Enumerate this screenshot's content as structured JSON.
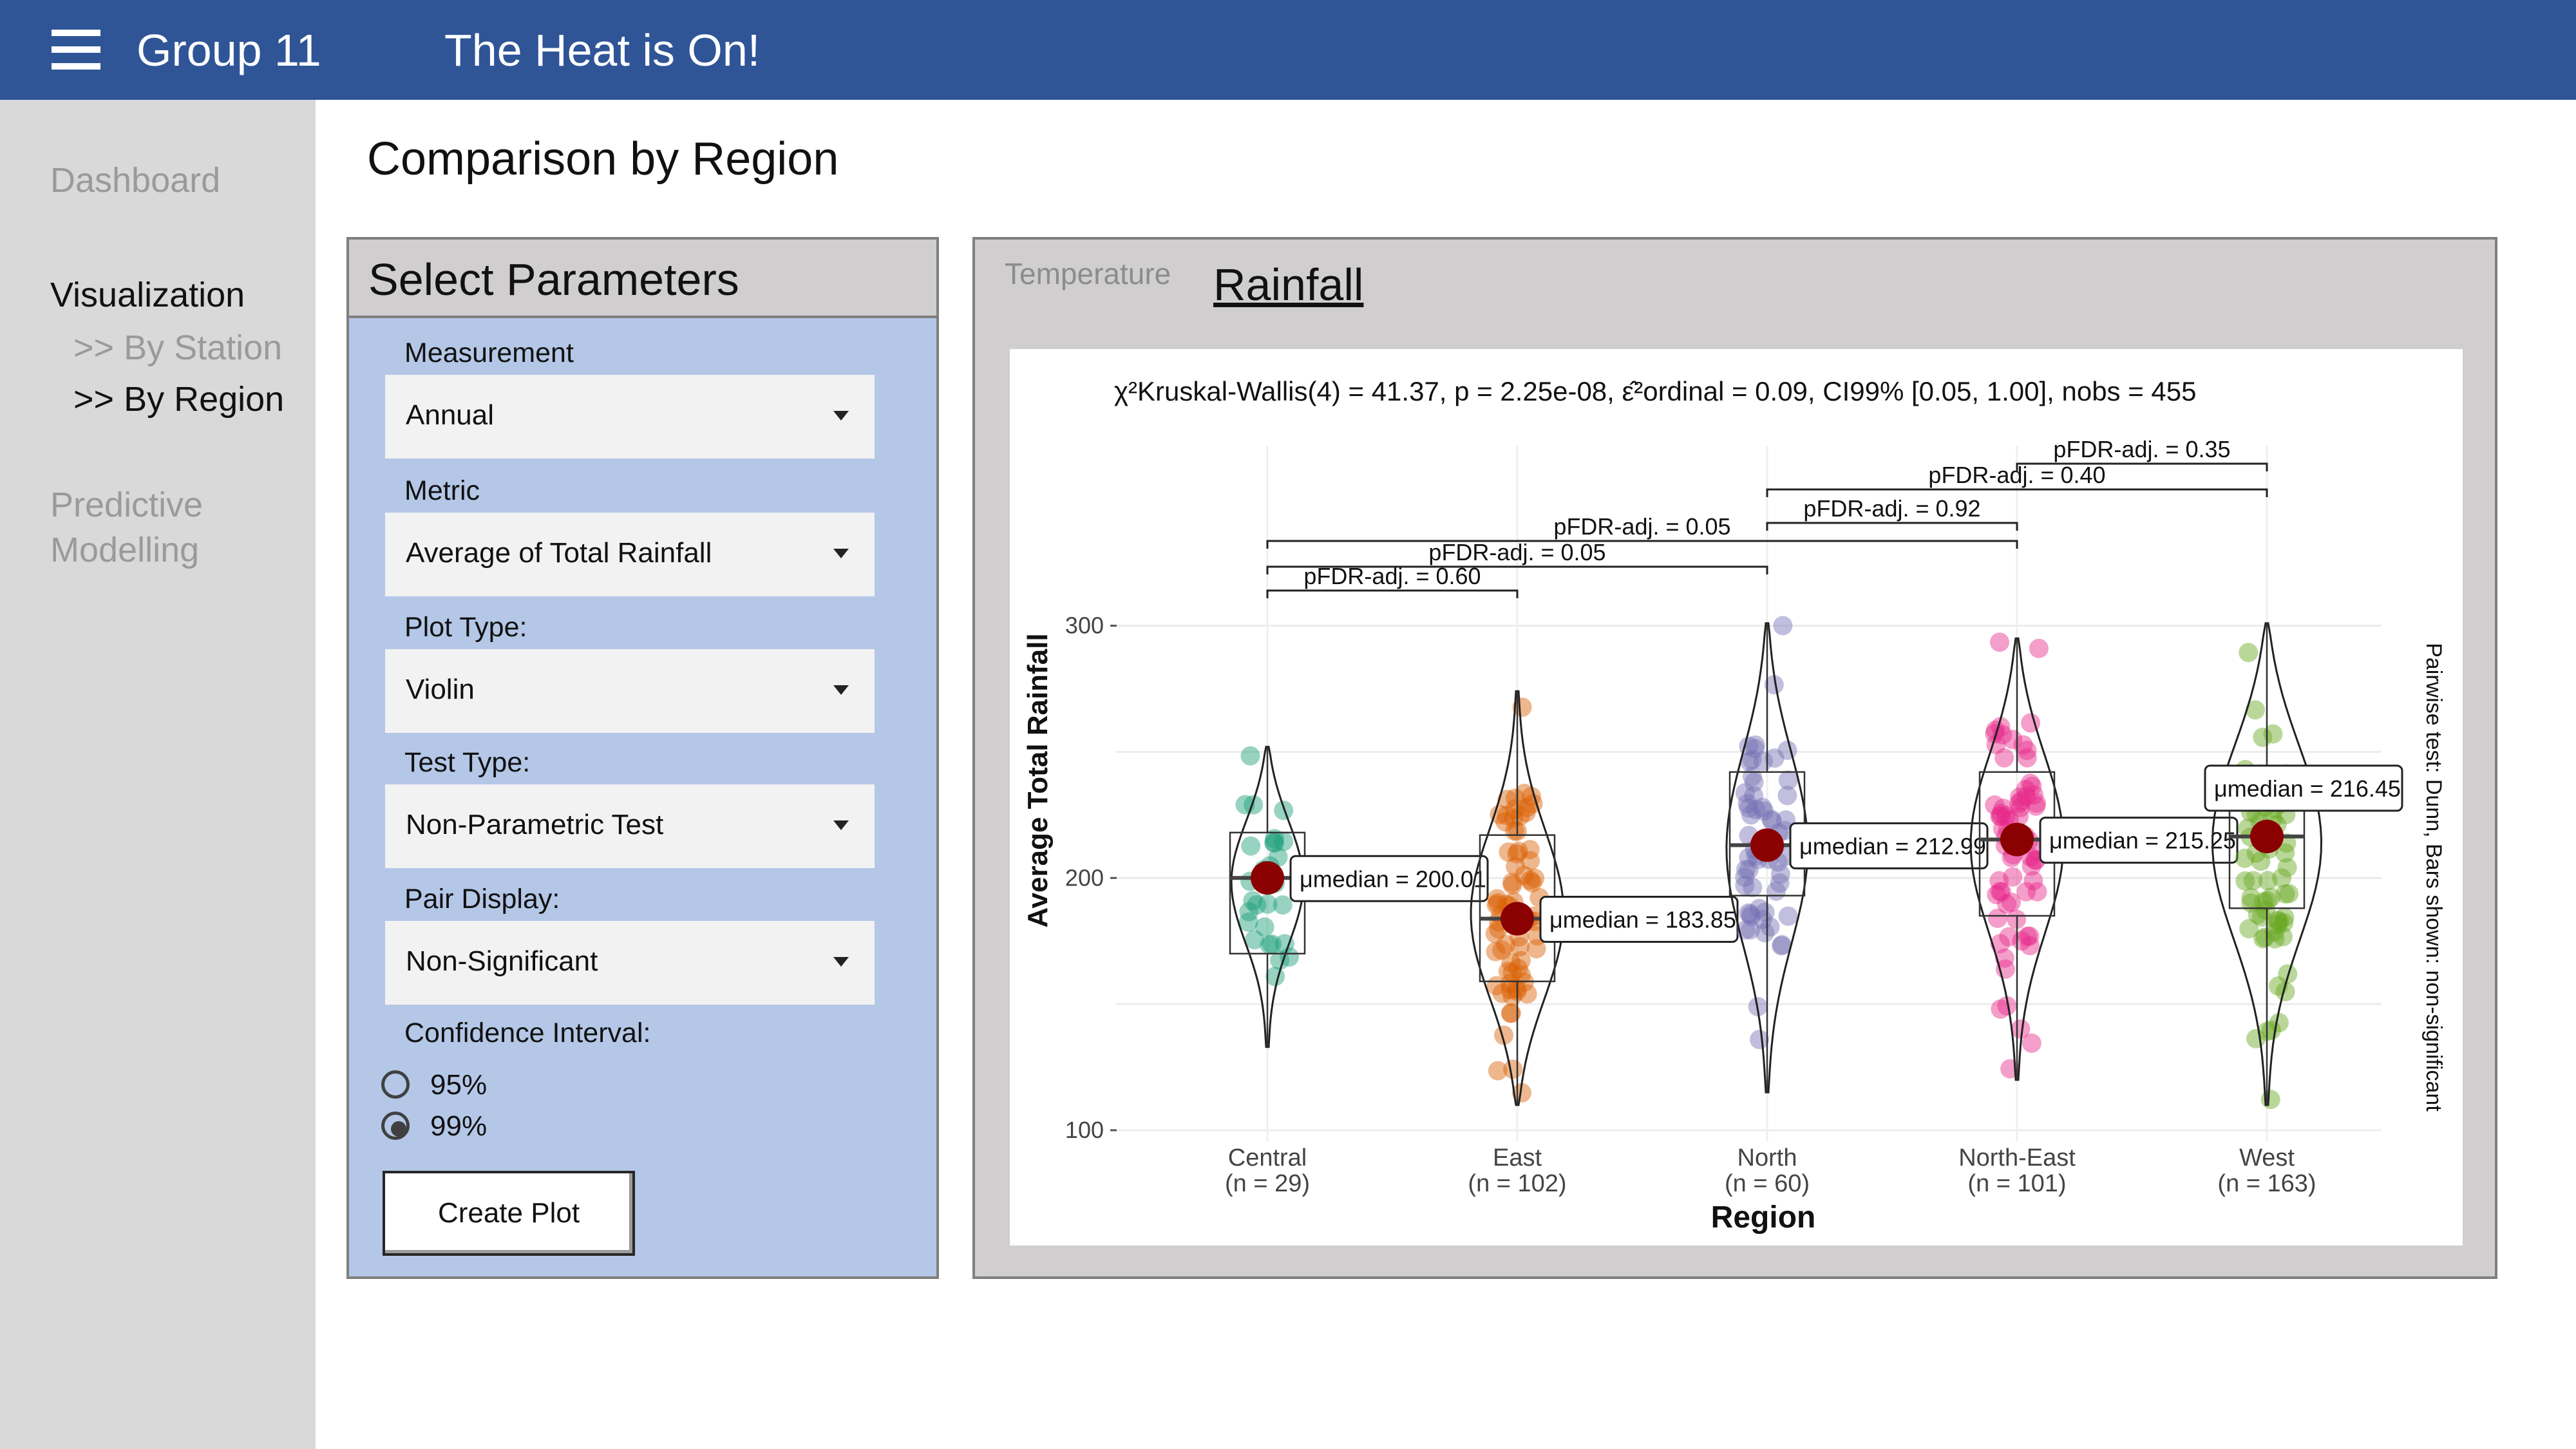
{
  "header": {
    "menu_icon": "hamburger-menu-icon",
    "brand": "Group 11",
    "app_title": "The Heat is On!",
    "background_color": "#2f5597"
  },
  "sidebar": {
    "items": [
      {
        "label": "Dashboard"
      },
      {
        "label": "Visualization"
      },
      {
        "label": ">> By Station"
      },
      {
        "label": ">> By Region"
      },
      {
        "label": "Predictive"
      },
      {
        "label": "Modelling"
      }
    ]
  },
  "page": {
    "title": "Comparison by Region"
  },
  "params": {
    "title": "Select Parameters",
    "measurement_label": "Measurement",
    "measurement_value": "Annual",
    "metric_label": "Metric",
    "metric_value": "Average of Total Rainfall",
    "plot_type_label": "Plot Type:",
    "plot_type_value": "Violin",
    "test_type_label": "Test Type:",
    "test_type_value": "Non-Parametric Test",
    "pair_display_label": "Pair Display:",
    "pair_display_value": "Non-Significant",
    "ci_label": "Confidence Interval:",
    "ci_options": [
      "95%",
      "99%"
    ],
    "ci_selected": "99%",
    "create_button": "Create Plot",
    "panel_color": "#b4c7e7"
  },
  "tabs": {
    "temperature": "Temperature",
    "rainfall": "Rainfall",
    "active": "Rainfall"
  },
  "chart_data": {
    "type": "violin",
    "subtitle": "χ²Kruskal-Wallis(4) = 41.37, p = 2.25e-08, ε̂²ordinal = 0.09, CI99% [0.05, 1.00], nobs = 455",
    "xlabel": "Region",
    "ylabel": "Average Total Rainfall",
    "ylim": [
      95,
      315
    ],
    "yticks": [
      100,
      200,
      300
    ],
    "right_caption": "Pairwise test: Dunn, Bars shown: non-significant",
    "categories": [
      {
        "name": "Central",
        "n": 29,
        "n_label": "(n = 29)",
        "median": 200.01,
        "median_label": "μmedian = 200.01",
        "q1": 170,
        "q3": 218,
        "min": 133,
        "max": 252,
        "color": "#1b9e77"
      },
      {
        "name": "East",
        "n": 102,
        "n_label": "(n = 102)",
        "median": 183.85,
        "median_label": "μmedian = 183.85",
        "q1": 159,
        "q3": 217,
        "min": 110,
        "max": 274,
        "color": "#d95f02"
      },
      {
        "name": "North",
        "n": 60,
        "n_label": "(n = 60)",
        "median": 212.99,
        "median_label": "μmedian = 212.99",
        "q1": 193,
        "q3": 242,
        "min": 115,
        "max": 301,
        "color": "#7570b3"
      },
      {
        "name": "North-East",
        "n": 101,
        "n_label": "(n = 101)",
        "median": 215.25,
        "median_label": "μmedian = 215.25",
        "q1": 185,
        "q3": 242,
        "min": 120,
        "max": 295,
        "color": "#e7298a"
      },
      {
        "name": "West",
        "n": 163,
        "n_label": "(n = 163)",
        "median": 216.45,
        "median_label": "μmedian = 216.45",
        "q1": 188,
        "q3": 230,
        "min": 110,
        "max": 301,
        "color": "#66a61e"
      }
    ],
    "comparisons": [
      {
        "pair": [
          0,
          1
        ],
        "label": "pFDR-adj. = 0.60"
      },
      {
        "pair": [
          0,
          2
        ],
        "label": "pFDR-adj. = 0.05"
      },
      {
        "pair": [
          0,
          3
        ],
        "label": "pFDR-adj. = 0.05"
      },
      {
        "pair": [
          2,
          3
        ],
        "label": "pFDR-adj. = 0.92"
      },
      {
        "pair": [
          2,
          4
        ],
        "label": "pFDR-adj. = 0.40"
      },
      {
        "pair": [
          3,
          4
        ],
        "label": "pFDR-adj. = 0.35"
      }
    ]
  }
}
